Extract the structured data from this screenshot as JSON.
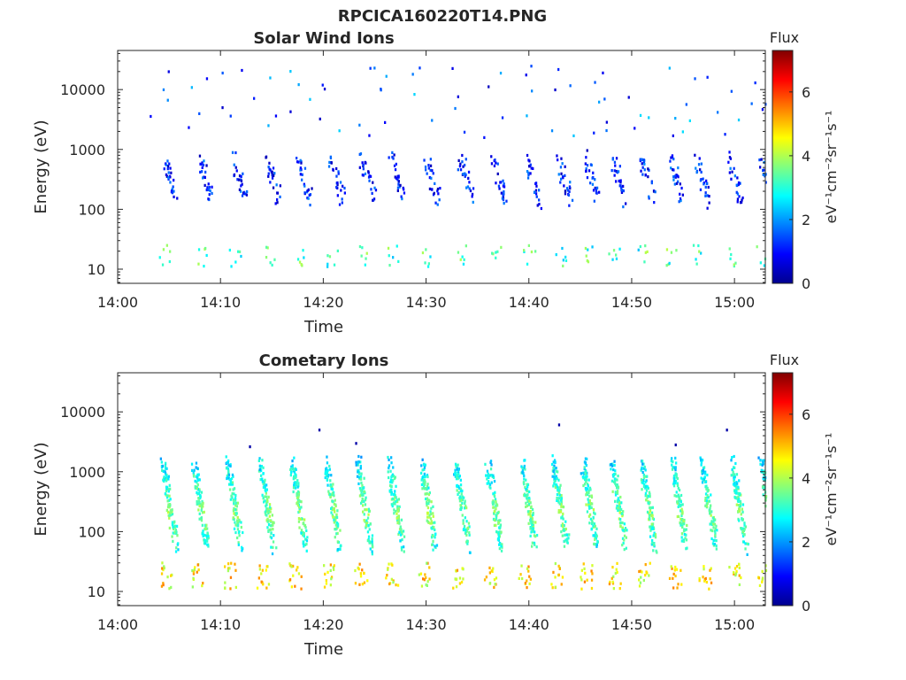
{
  "figure": {
    "title": "RPCICA160220T14.PNG"
  },
  "colors": {
    "axis": "#262626",
    "background": "#ffffff",
    "colormap": [
      "#00008f",
      "#0000ff",
      "#0080ff",
      "#00ffff",
      "#80ff80",
      "#ffff00",
      "#ff8000",
      "#ff0000",
      "#800000"
    ]
  },
  "chart_data": [
    {
      "type": "heatmap",
      "title": "Solar Wind Ions",
      "xlabel": "Time",
      "ylabel": "Energy (eV)",
      "x_tick_labels": [
        "14:00",
        "14:10",
        "14:20",
        "14:30",
        "14:40",
        "14:50",
        "15:00"
      ],
      "x_tick_values_min": [
        0,
        10,
        20,
        30,
        40,
        50,
        60
      ],
      "xlim_min": [
        0,
        63
      ],
      "yscale": "log",
      "y_tick_labels": [
        "10",
        "100",
        "1000",
        "10000"
      ],
      "y_tick_values": [
        10,
        100,
        1000,
        10000
      ],
      "ylim": [
        5.8,
        45000
      ],
      "colorbar": {
        "label": "Flux",
        "units": "eV⁻¹cm⁻²sr⁻¹s⁻¹",
        "range": [
          0,
          7.3
        ],
        "tick_labels": [
          "0",
          "2",
          "4",
          "6"
        ],
        "tick_values": [
          0,
          2,
          4,
          6
        ]
      },
      "burst_times_min": [
        4.3,
        7.8,
        11.1,
        14.3,
        17.3,
        20.6,
        23.6,
        26.5,
        29.8,
        33.2,
        36.3,
        39.7,
        42.7,
        45.4,
        48.0,
        50.8,
        53.6,
        56.1,
        59.2,
        62.3
      ],
      "burst_energy_range_eV": [
        150,
        700
      ],
      "low_band_energy_range_eV": [
        11,
        25
      ],
      "typical_flux_main": 0.8,
      "typical_flux_low": 3.2,
      "high_energy_sparse_range_eV": [
        1500,
        25000
      ]
    },
    {
      "type": "heatmap",
      "title": "Cometary Ions",
      "xlabel": "Time",
      "ylabel": "Energy (eV)",
      "x_tick_labels": [
        "14:00",
        "14:10",
        "14:20",
        "14:30",
        "14:40",
        "14:50",
        "15:00"
      ],
      "x_tick_values_min": [
        0,
        10,
        20,
        30,
        40,
        50,
        60
      ],
      "xlim_min": [
        0,
        63
      ],
      "yscale": "log",
      "y_tick_labels": [
        "10",
        "100",
        "1000",
        "10000"
      ],
      "y_tick_values": [
        10,
        100,
        1000,
        10000
      ],
      "ylim": [
        5.8,
        45000
      ],
      "colorbar": {
        "label": "Flux",
        "units": "eV⁻¹cm⁻²sr⁻¹s⁻¹",
        "range": [
          0,
          7.3
        ],
        "tick_labels": [
          "0",
          "2",
          "4",
          "6"
        ],
        "tick_values": [
          0,
          2,
          4,
          6
        ]
      },
      "burst_times_min": [
        4.3,
        7.3,
        10.6,
        13.8,
        16.9,
        20.2,
        23.3,
        26.3,
        29.5,
        32.8,
        35.9,
        39.2,
        42.3,
        45.2,
        48.0,
        50.9,
        53.9,
        56.8,
        59.7,
        62.5
      ],
      "burst_energy_range_eV": [
        60,
        1200
      ],
      "low_band_energy_range_eV": [
        11,
        30
      ],
      "typical_flux_main": 3.0,
      "typical_flux_low": 4.6,
      "high_energy_sparse_range_eV": [
        2000,
        12000
      ]
    }
  ]
}
